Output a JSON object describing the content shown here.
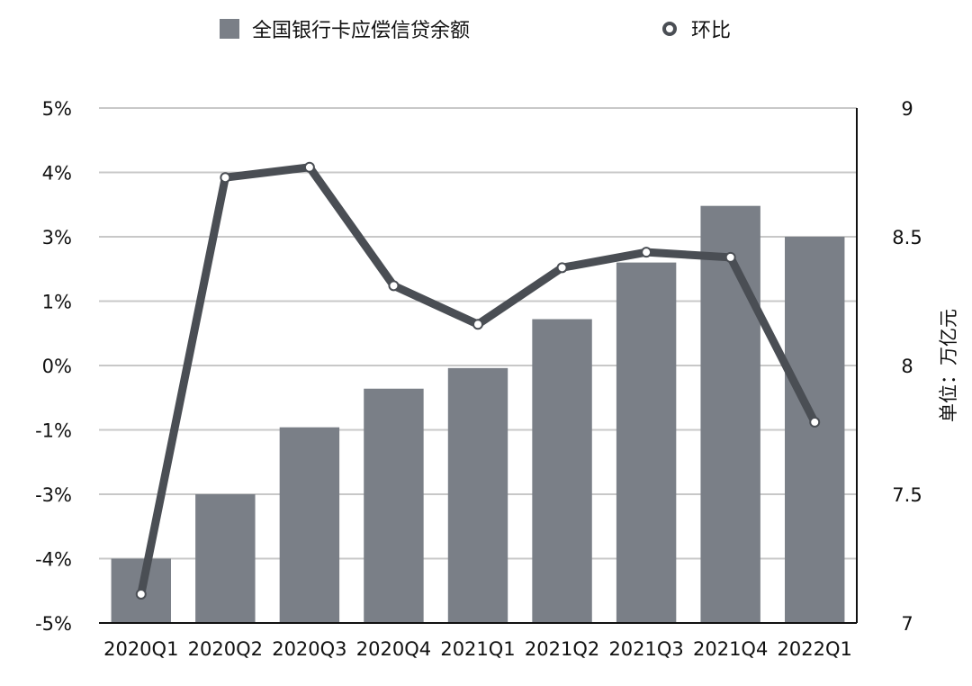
{
  "chart_data": {
    "type": "bar+line",
    "categories": [
      "2020Q1",
      "2020Q2",
      "2020Q3",
      "2020Q4",
      "2021Q1",
      "2021Q2",
      "2021Q3",
      "2021Q4",
      "2022Q1"
    ],
    "series": [
      {
        "name": "全国银行卡应偿信贷余额",
        "type": "bar",
        "axis": "right",
        "values": [
          7.25,
          7.5,
          7.76,
          7.91,
          7.99,
          8.18,
          8.4,
          8.62,
          8.5
        ]
      },
      {
        "name": "环比",
        "type": "line",
        "axis": "left",
        "values": [
          -4.44,
          3.65,
          3.85,
          1.55,
          0.8,
          1.9,
          2.2,
          2.1,
          -1.1
        ]
      }
    ],
    "left_axis": {
      "ticks": [
        "-5%",
        "-4%",
        "-3%",
        "-1%",
        "0%",
        "1%",
        "3%",
        "4%",
        "5%"
      ]
    },
    "right_axis": {
      "label": "单位：万亿元",
      "ticks": [
        "7",
        "7.5",
        "8",
        "8.5",
        "9"
      ],
      "ylim": [
        7,
        9
      ]
    },
    "colors": {
      "bar": "#7a7f87",
      "line": "#4a4e54",
      "grid": "#c8c8c8",
      "axis": "#111111"
    },
    "grid": true,
    "legend_position": "top"
  }
}
